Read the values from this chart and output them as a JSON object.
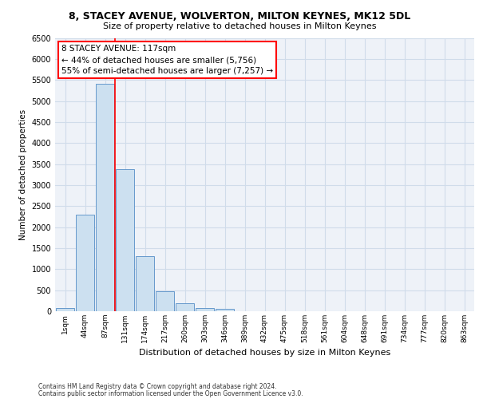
{
  "title_line1": "8, STACEY AVENUE, WOLVERTON, MILTON KEYNES, MK12 5DL",
  "title_line2": "Size of property relative to detached houses in Milton Keynes",
  "xlabel": "Distribution of detached houses by size in Milton Keynes",
  "ylabel": "Number of detached properties",
  "footer_line1": "Contains HM Land Registry data © Crown copyright and database right 2024.",
  "footer_line2": "Contains public sector information licensed under the Open Government Licence v3.0.",
  "bar_labels": [
    "1sqm",
    "44sqm",
    "87sqm",
    "131sqm",
    "174sqm",
    "217sqm",
    "260sqm",
    "303sqm",
    "346sqm",
    "389sqm",
    "432sqm",
    "475sqm",
    "518sqm",
    "561sqm",
    "604sqm",
    "648sqm",
    "691sqm",
    "734sqm",
    "777sqm",
    "820sqm",
    "863sqm"
  ],
  "bar_values": [
    70,
    2300,
    5400,
    3380,
    1310,
    480,
    190,
    80,
    50,
    0,
    0,
    0,
    0,
    0,
    0,
    0,
    0,
    0,
    0,
    0,
    0
  ],
  "bar_color": "#cce0f0",
  "bar_edgecolor": "#6699cc",
  "vline_x": 2.5,
  "vline_color": "red",
  "ylim": [
    0,
    6500
  ],
  "yticks": [
    0,
    500,
    1000,
    1500,
    2000,
    2500,
    3000,
    3500,
    4000,
    4500,
    5000,
    5500,
    6000,
    6500
  ],
  "annotation_title": "8 STACEY AVENUE: 117sqm",
  "annotation_line1": "← 44% of detached houses are smaller (5,756)",
  "annotation_line2": "55% of semi-detached houses are larger (7,257) →",
  "annotation_box_color": "white",
  "annotation_box_edgecolor": "red",
  "grid_color": "#d0dcea",
  "background_color": "#eef2f8"
}
